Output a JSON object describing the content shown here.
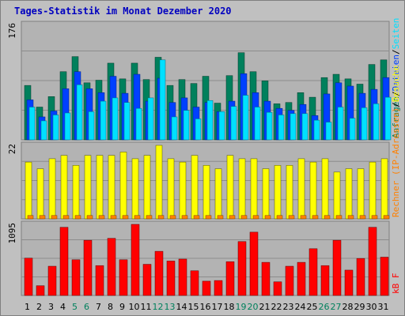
{
  "title": "Tages-Statistik im Monat Dezember 2020",
  "colors": {
    "background": "#c0c0c0",
    "panel": "#b3b3b3",
    "grid": "#8c8c8c",
    "title": "#0000c0",
    "hits": "#00805c",
    "files": "#0040ff",
    "pages": "#00e0ff",
    "visits": "#ffff00",
    "sites": "#ff8000",
    "kbytes": "#ff0000",
    "label_black": "#000000",
    "label_weekend": "#00805c"
  },
  "chart_data": [
    {
      "type": "bar",
      "ymax_label": "176",
      "legend": [
        {
          "text": "Anfragen",
          "color": "#00805c"
        },
        {
          "text": "/",
          "color": "#000000"
        },
        {
          "text": "Dateien",
          "color": "#0040ff"
        },
        {
          "text": "/",
          "color": "#000000"
        },
        {
          "text": "Seiten",
          "color": "#00e0ff"
        }
      ],
      "ylim": [
        0,
        176
      ],
      "series": [
        {
          "name": "Anfragen",
          "values": [
            83,
            50,
            66,
            104,
            127,
            87,
            91,
            117,
            93,
            117,
            92,
            126,
            83,
            92,
            86,
            97,
            56,
            98,
            133,
            104,
            90,
            55,
            57,
            72,
            65,
            95,
            100,
            93,
            85,
            115,
            122
          ]
        },
        {
          "name": "Dateien",
          "values": [
            61,
            35,
            44,
            78,
            104,
            78,
            72,
            97,
            71,
            100,
            59,
            94,
            57,
            64,
            50,
            57,
            43,
            59,
            101,
            72,
            59,
            48,
            45,
            54,
            37,
            70,
            87,
            82,
            71,
            77,
            95
          ]
        },
        {
          "name": "Seiten",
          "values": [
            50,
            29,
            38,
            41,
            84,
            43,
            59,
            64,
            57,
            48,
            64,
            122,
            35,
            45,
            32,
            60,
            43,
            51,
            68,
            50,
            42,
            38,
            40,
            40,
            30,
            27,
            50,
            33,
            49,
            55,
            65
          ]
        }
      ]
    },
    {
      "type": "bar",
      "ymax_label": "22",
      "legend": [
        {
          "text": "Rechner (IP-Adressen)",
          "color": "#ff8000"
        },
        {
          "text": "/",
          "color": "#000000"
        },
        {
          "text": "Besuche",
          "color": "#ffff00"
        }
      ],
      "ylim": [
        0,
        22
      ],
      "series": [
        {
          "name": "Besuche",
          "values": [
            17,
            15,
            18,
            19,
            16,
            19,
            19,
            19,
            20,
            18,
            19,
            22,
            18,
            17,
            19,
            16,
            15,
            19,
            18,
            18,
            15,
            16,
            16,
            18,
            17,
            18,
            14,
            15,
            15,
            17,
            18
          ]
        },
        {
          "name": "Rechner (IP-Adressen)",
          "values": [
            1,
            1,
            1,
            1,
            1,
            1,
            1,
            1,
            1,
            1,
            1,
            1,
            1,
            1,
            1,
            1,
            1,
            1,
            1,
            1,
            1,
            1,
            1,
            1,
            1,
            1,
            1,
            1,
            1,
            1,
            1
          ]
        }
      ]
    },
    {
      "type": "bar",
      "ymax_label": "1095",
      "legend": [
        {
          "text": "kB F",
          "color": "#ff0000"
        }
      ],
      "ylim": [
        0,
        1095
      ],
      "series": [
        {
          "name": "kB F",
          "values": [
            575,
            150,
            450,
            1050,
            550,
            850,
            460,
            880,
            550,
            1095,
            480,
            680,
            530,
            560,
            380,
            220,
            230,
            520,
            830,
            975,
            510,
            210,
            450,
            510,
            720,
            460,
            850,
            390,
            570,
            1050,
            590
          ]
        }
      ]
    }
  ],
  "days": [
    "1",
    "2",
    "3",
    "4",
    "5",
    "6",
    "7",
    "8",
    "9",
    "10",
    "11",
    "12",
    "13",
    "14",
    "15",
    "16",
    "17",
    "18",
    "19",
    "20",
    "21",
    "22",
    "23",
    "24",
    "25",
    "26",
    "27",
    "28",
    "29",
    "30",
    "31"
  ],
  "weekend_days": [
    5,
    6,
    12,
    13,
    19,
    20,
    26,
    27
  ]
}
